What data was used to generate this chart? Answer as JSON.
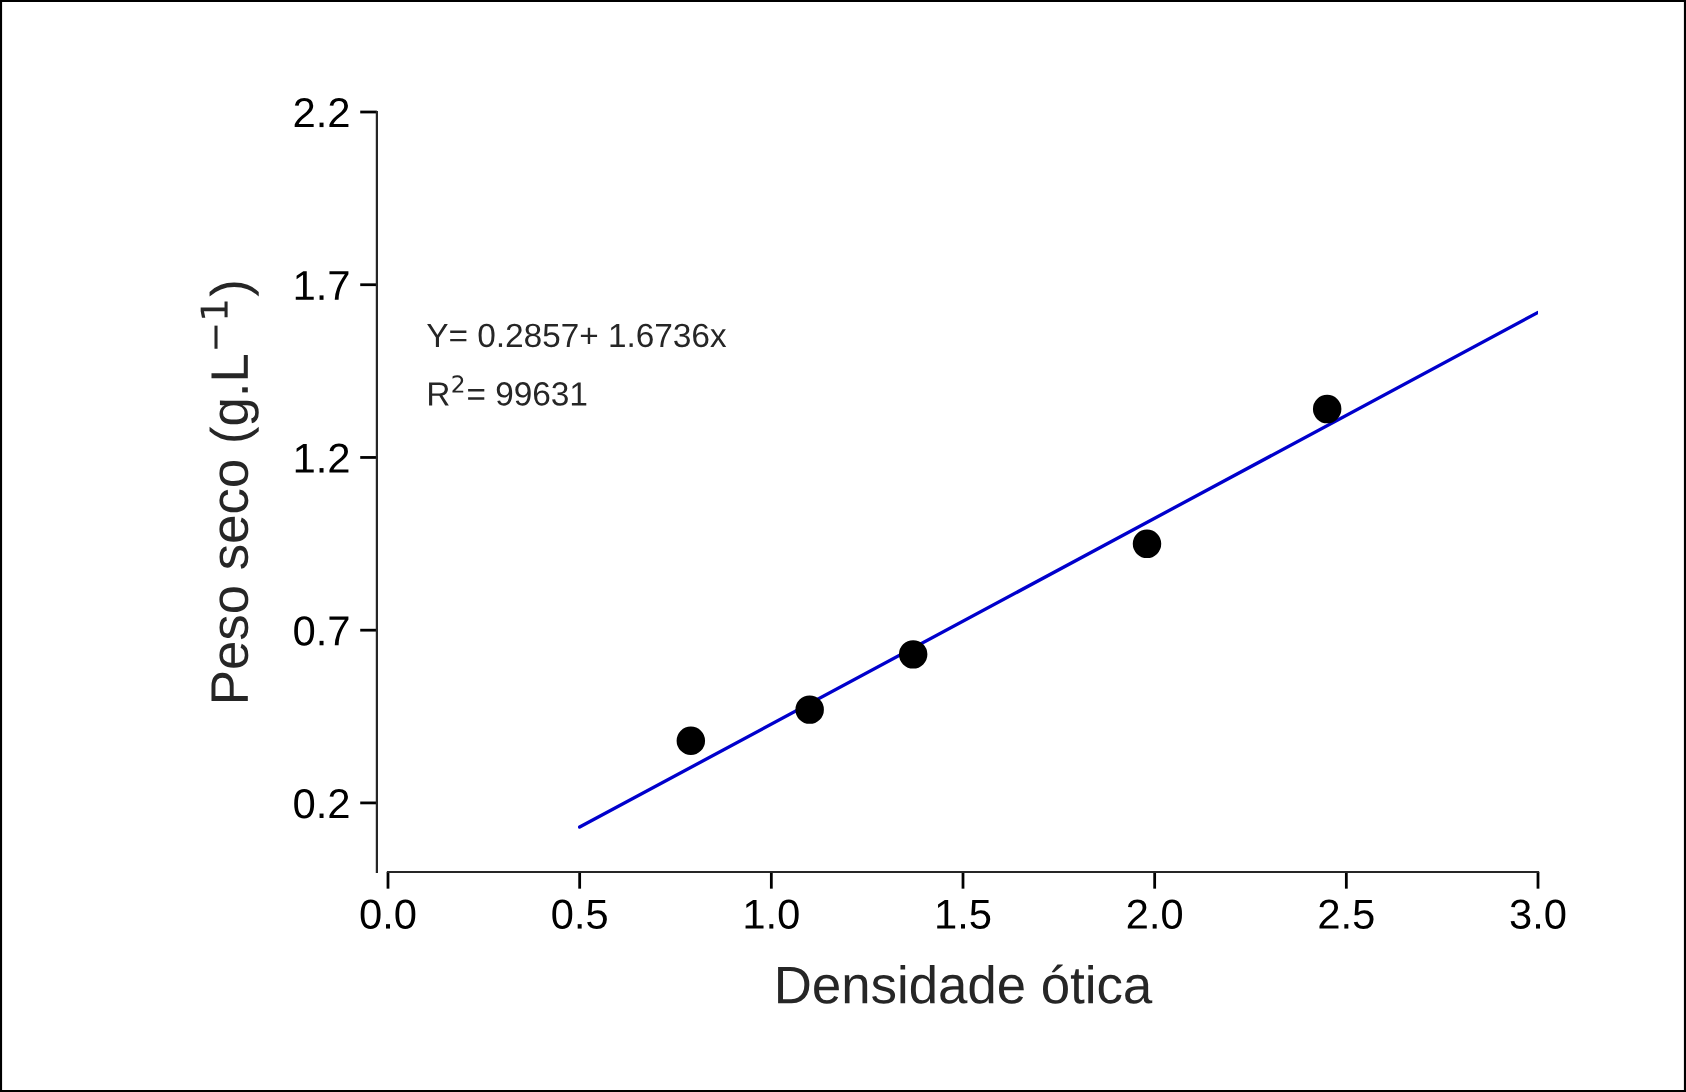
{
  "chart_data": {
    "type": "scatter",
    "xlabel": "Densidade ótica",
    "ylabel": "Peso seco (g.L$^{−1}$)",
    "series": [
      {
        "color": "#000000",
        "marker": "circle",
        "x": [
          0.79,
          1.1,
          1.37,
          1.98,
          2.45
        ],
        "values": [
          0.38,
          0.47,
          0.63,
          0.95,
          1.34
        ]
      },
      {
        "type": "line",
        "color": "#0000cc",
        "marker": "none",
        "line_style": "solid",
        "x": [
          0.5,
          3.0
        ],
        "values": [
          0.13,
          1.62
        ]
      }
    ],
    "xlim": [
      0.0,
      3.0
    ],
    "xticks": [
      {
        "value": 0,
        "label": "0.0"
      },
      {
        "value": 0.5,
        "label": "0.5"
      },
      {
        "value": 1,
        "label": "1.0"
      },
      {
        "value": 1.5,
        "label": "1.5"
      },
      {
        "value": 2,
        "label": "2.0"
      },
      {
        "value": 2.5,
        "label": "2.5"
      },
      {
        "value": 3,
        "label": "3.0"
      }
    ],
    "ylim": [
      0.0,
      2.2
    ],
    "yticks": [
      0.2,
      0.7,
      1.2,
      1.7,
      2.2
    ],
    "annotations": [
      "Y= 0.2857+ 1.6736x",
      "R$^{2}$= 99631"
    ],
    "grid": false,
    "legend": false
  }
}
